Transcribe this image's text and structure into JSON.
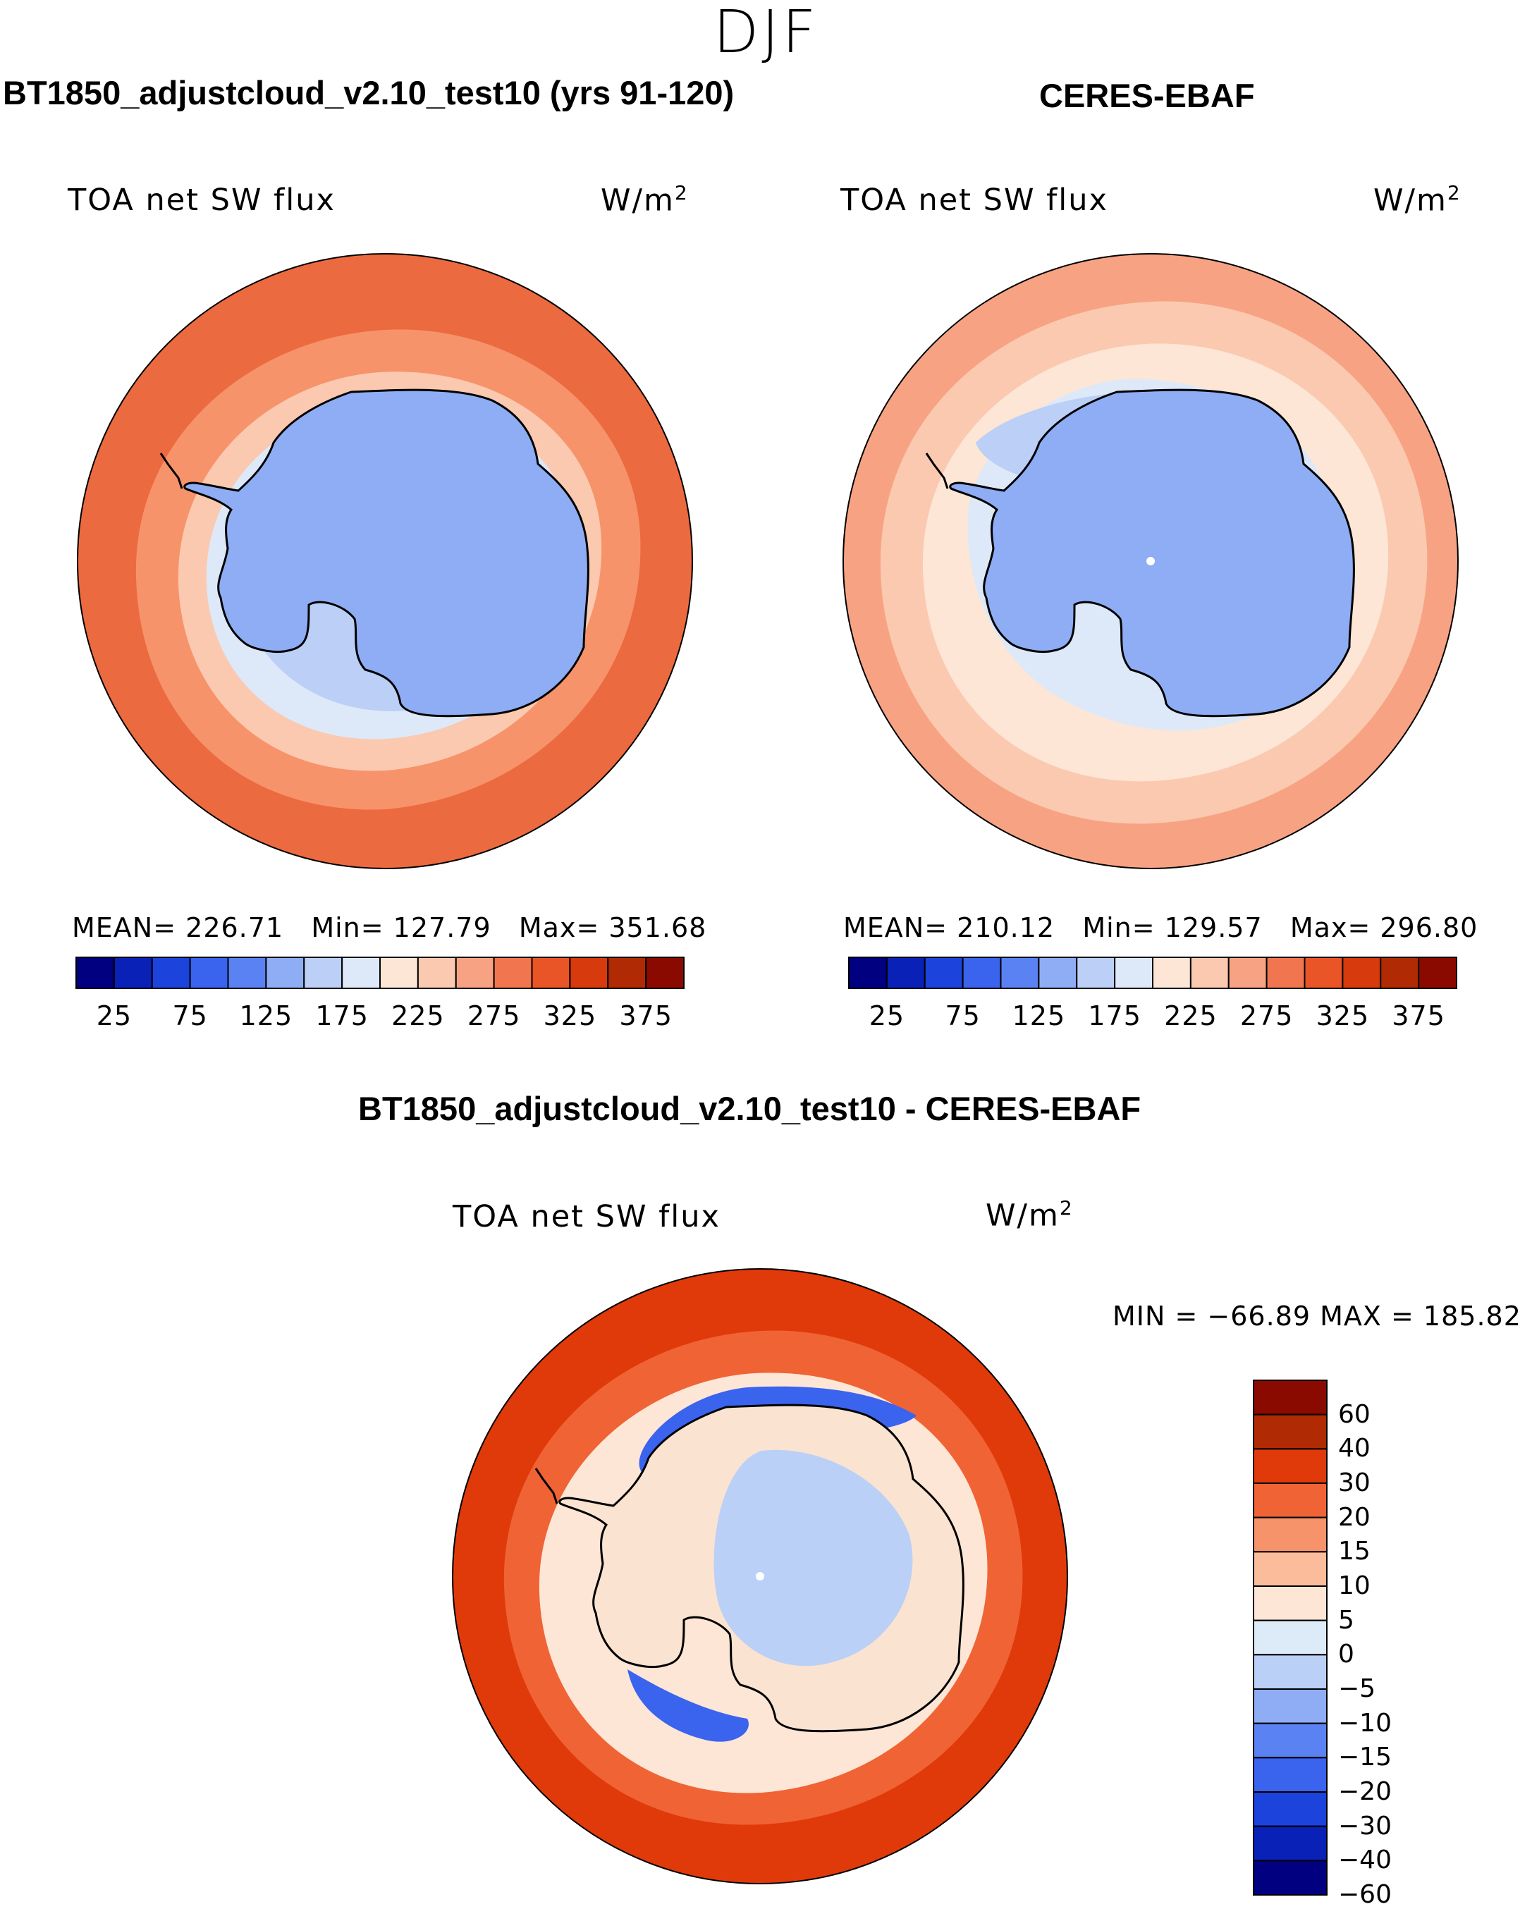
{
  "season": "DJF",
  "panels": {
    "model": {
      "title": "BT1850_adjustcloud_v2.10_test10 (yrs 91-120)",
      "variable": "TOA net SW flux",
      "units_base": "W/m",
      "units_exp": "2",
      "stats": "MEAN= 226.71   Min= 127.79   Max= 351.68"
    },
    "obs": {
      "title": "CERES-EBAF",
      "variable": "TOA net SW flux",
      "units_base": "W/m",
      "units_exp": "2",
      "stats": "MEAN= 210.12   Min= 129.57   Max= 296.80"
    },
    "diff": {
      "title": "BT1850_adjustcloud_v2.10_test10 - CERES-EBAF",
      "variable": "TOA net SW flux",
      "units_base": "W/m",
      "units_exp": "2",
      "stats": "MIN = −66.89 MAX = 185.82"
    }
  },
  "colorbars": {
    "absolute": {
      "colors": [
        "#000080",
        "#0a21b8",
        "#1c43dc",
        "#3a63ee",
        "#5b82f2",
        "#8fadf4",
        "#bccff6",
        "#dde9f8",
        "#fde6d6",
        "#fbc9b0",
        "#f7a383",
        "#f17650",
        "#e95526",
        "#d63a0d",
        "#b02a04",
        "#8a0a00"
      ],
      "tick_labels": [
        "25",
        "75",
        "125",
        "175",
        "225",
        "275",
        "325",
        "375"
      ]
    },
    "difference": {
      "colors": [
        "#8a0a00",
        "#b02a04",
        "#e03a0a",
        "#f06335",
        "#f7936a",
        "#fbbc9c",
        "#fde6d6",
        "#ddeaf8",
        "#bad0f6",
        "#8fadf4",
        "#5b82f2",
        "#3a63ee",
        "#1c43dc",
        "#0a21b8",
        "#000080"
      ],
      "tick_labels": [
        "60",
        "40",
        "30",
        "20",
        "15",
        "10",
        "5",
        "0",
        "−5",
        "−10",
        "−15",
        "−20",
        "−30",
        "−40",
        "−60"
      ]
    }
  },
  "map_colors": {
    "ocean_far": "#ec6a3f",
    "ocean_mid": "#f7936a",
    "ocean_near": "#fbc9b0",
    "ice_edge": "#dde9f8",
    "ice_mid": "#bccff6",
    "continent": "#8fadf4",
    "obs_far": "#f7a383",
    "obs_mid": "#fbc9b0",
    "obs_near": "#fde6d6",
    "diff_far": "#e03a0a",
    "diff_mid": "#f06335",
    "diff_near": "#fde6d6",
    "diff_blue": "#3a63ee",
    "diff_land": "#fbe3d2",
    "diff_interior": "#bad0f6"
  }
}
